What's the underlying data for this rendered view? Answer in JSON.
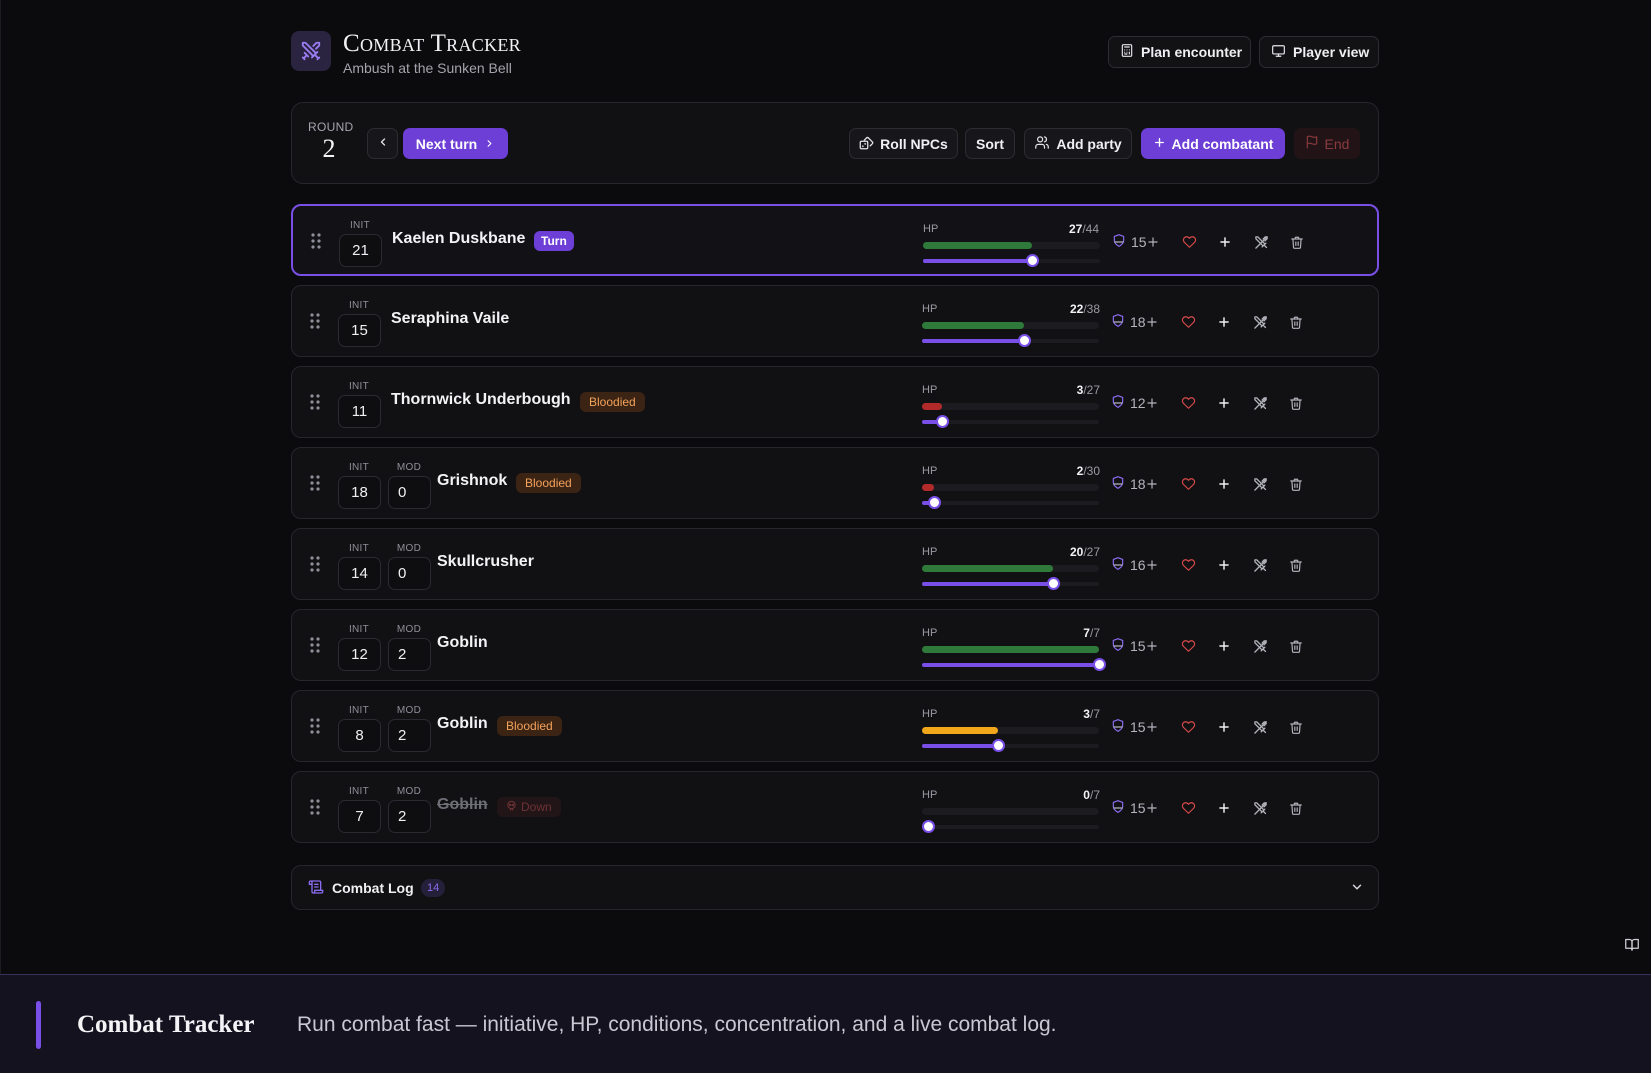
{
  "header": {
    "title": "Combat Tracker",
    "subtitle": "Ambush at the Sunken Bell",
    "plan_label": "Plan encounter",
    "player_label": "Player view"
  },
  "toolbar": {
    "round_label": "ROUND",
    "round": "2",
    "next_label": "Next turn",
    "roll_label": "Roll NPCs",
    "sort_label": "Sort",
    "party_label": "Add party",
    "add_label": "Add combatant",
    "end_label": "End"
  },
  "labels": {
    "init": "INIT",
    "mod": "MOD",
    "hp": "HP"
  },
  "colors": {
    "accent": "#6d3fd6",
    "hp_healthy": "#2f7a3a",
    "hp_wounded": "#f0a81a",
    "hp_critical": "#b32a2a",
    "bloodied": "#f3a25a"
  },
  "combatants": [
    {
      "init": "21",
      "mod": "",
      "name": "Kaelen Duskbane",
      "badge": "Turn",
      "badge_type": "turn",
      "hp": "27",
      "hp_max": "/44",
      "hp_frac": 0.614,
      "ac": "15",
      "active": true
    },
    {
      "init": "15",
      "mod": "",
      "name": "Seraphina Vaile",
      "badge": "",
      "badge_type": "",
      "hp": "22",
      "hp_max": "/38",
      "hp_frac": 0.579,
      "ac": "18"
    },
    {
      "init": "11",
      "mod": "",
      "name": "Thornwick Underbough",
      "badge": "Bloodied",
      "badge_type": "bloodied",
      "hp": "3",
      "hp_max": "/27",
      "hp_frac": 0.111,
      "ac": "12"
    },
    {
      "init": "18",
      "mod": "0",
      "name": "Grishnok",
      "badge": "Bloodied",
      "badge_type": "bloodied",
      "hp": "2",
      "hp_max": "/30",
      "hp_frac": 0.067,
      "ac": "18"
    },
    {
      "init": "14",
      "mod": "0",
      "name": "Skullcrusher",
      "badge": "",
      "badge_type": "",
      "hp": "20",
      "hp_max": "/27",
      "hp_frac": 0.741,
      "ac": "16"
    },
    {
      "init": "12",
      "mod": "2",
      "name": "Goblin",
      "badge": "",
      "badge_type": "",
      "hp": "7",
      "hp_max": "/7",
      "hp_frac": 1.0,
      "ac": "15"
    },
    {
      "init": "8",
      "mod": "2",
      "name": "Goblin",
      "badge": "Bloodied",
      "badge_type": "bloodied",
      "hp": "3",
      "hp_max": "/7",
      "hp_frac": 0.429,
      "ac": "15"
    },
    {
      "init": "7",
      "mod": "2",
      "name": "Goblin",
      "badge": "Down",
      "badge_type": "down",
      "hp": "0",
      "hp_max": "/7",
      "hp_frac": 0.0,
      "ac": "15"
    }
  ],
  "log": {
    "title": "Combat Log",
    "count": "14"
  },
  "banner": {
    "title": "Combat Tracker",
    "description": "Run combat fast — initiative, HP, conditions, concentration, and a live combat log."
  }
}
